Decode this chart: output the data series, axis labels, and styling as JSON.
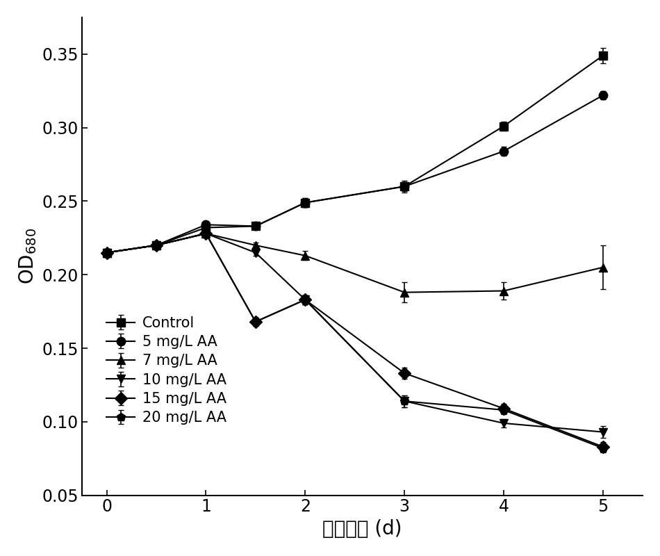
{
  "x": [
    0,
    0.5,
    1,
    1.5,
    2,
    3,
    4,
    5
  ],
  "series_order": [
    "Control",
    "5 mg/L AA",
    "7 mg/L AA",
    "10 mg/L AA",
    "15 mg/L AA",
    "20 mg/L AA"
  ],
  "series": {
    "Control": {
      "y": [
        0.215,
        0.22,
        0.232,
        0.233,
        0.249,
        0.26,
        0.301,
        0.349
      ],
      "yerr": [
        0.002,
        0.002,
        0.002,
        0.002,
        0.003,
        0.004,
        0.003,
        0.005
      ],
      "marker": "s",
      "label": "Control"
    },
    "5 mg/L AA": {
      "y": [
        0.215,
        0.22,
        0.234,
        0.233,
        0.249,
        0.26,
        0.284,
        0.322
      ],
      "yerr": [
        0.002,
        0.002,
        0.002,
        0.002,
        0.003,
        0.003,
        0.003,
        0.003
      ],
      "marker": "o",
      "label": "5 mg/L AA"
    },
    "7 mg/L AA": {
      "y": [
        0.215,
        0.22,
        0.228,
        0.22,
        0.213,
        0.188,
        0.189,
        0.205
      ],
      "yerr": [
        0.002,
        0.002,
        0.002,
        0.002,
        0.003,
        0.007,
        0.006,
        0.015
      ],
      "marker": "^",
      "label": "7 mg/L AA"
    },
    "10 mg/L AA": {
      "y": [
        0.215,
        0.22,
        0.228,
        0.215,
        0.183,
        0.114,
        0.099,
        0.093
      ],
      "yerr": [
        0.002,
        0.002,
        0.002,
        0.002,
        0.003,
        0.004,
        0.003,
        0.004
      ],
      "marker": "v",
      "label": "10 mg/L AA"
    },
    "15 mg/L AA": {
      "y": [
        0.215,
        0.22,
        0.228,
        0.168,
        0.183,
        0.133,
        0.109,
        0.083
      ],
      "yerr": [
        0.002,
        0.002,
        0.002,
        0.003,
        0.003,
        0.004,
        0.003,
        0.003
      ],
      "marker": "D",
      "label": "15 mg/L AA"
    },
    "20 mg/L AA": {
      "y": [
        0.215,
        0.22,
        0.228,
        0.168,
        0.183,
        0.114,
        0.108,
        0.082
      ],
      "yerr": [
        0.002,
        0.002,
        0.002,
        0.003,
        0.003,
        0.004,
        0.003,
        0.003
      ],
      "marker": "p",
      "label": "20 mg/L AA"
    }
  },
  "xlabel": "反应时间 (d)",
  "ylabel": "OD$_{680}$",
  "xlim": [
    -0.25,
    5.4
  ],
  "ylim": [
    0.05,
    0.375
  ],
  "yticks": [
    0.05,
    0.1,
    0.15,
    0.2,
    0.25,
    0.3,
    0.35
  ],
  "xticks": [
    0,
    1,
    2,
    3,
    4,
    5
  ],
  "color": "#000000",
  "linewidth": 1.5,
  "markersize": 9,
  "capsize": 3,
  "legend_fontsize": 15,
  "axis_label_fontsize": 20,
  "tick_fontsize": 17
}
